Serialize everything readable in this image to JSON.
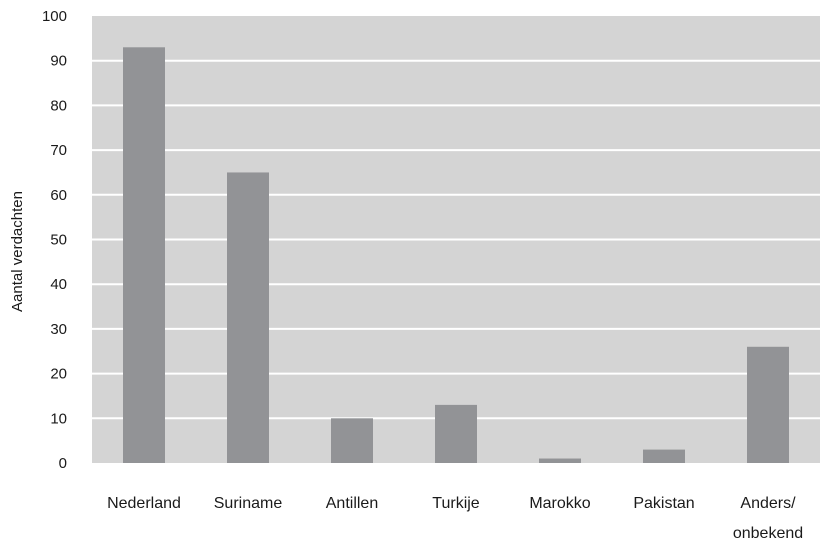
{
  "chart_data": {
    "type": "bar",
    "title": "",
    "xlabel": "",
    "ylabel": "Aantal verdachten",
    "ylim": [
      0,
      100
    ],
    "yticks": [
      0,
      10,
      20,
      30,
      40,
      50,
      60,
      70,
      80,
      90,
      100
    ],
    "ytick_labels": [
      "0",
      "10",
      "20",
      "30",
      "40",
      "50",
      "60",
      "70",
      "80",
      "90",
      "100"
    ],
    "categories": [
      [
        "Nederland"
      ],
      [
        "Suriname"
      ],
      [
        "Antillen"
      ],
      [
        "Turkije"
      ],
      [
        "Marokko"
      ],
      [
        "Pakistan"
      ],
      [
        "Anders/",
        "onbekend"
      ]
    ],
    "values": [
      93,
      65,
      10,
      13,
      1,
      3,
      26
    ],
    "grid": true,
    "colors": {
      "plot_background": "#d4d4d4",
      "bar": "#929396",
      "grid": "#ffffff"
    }
  }
}
